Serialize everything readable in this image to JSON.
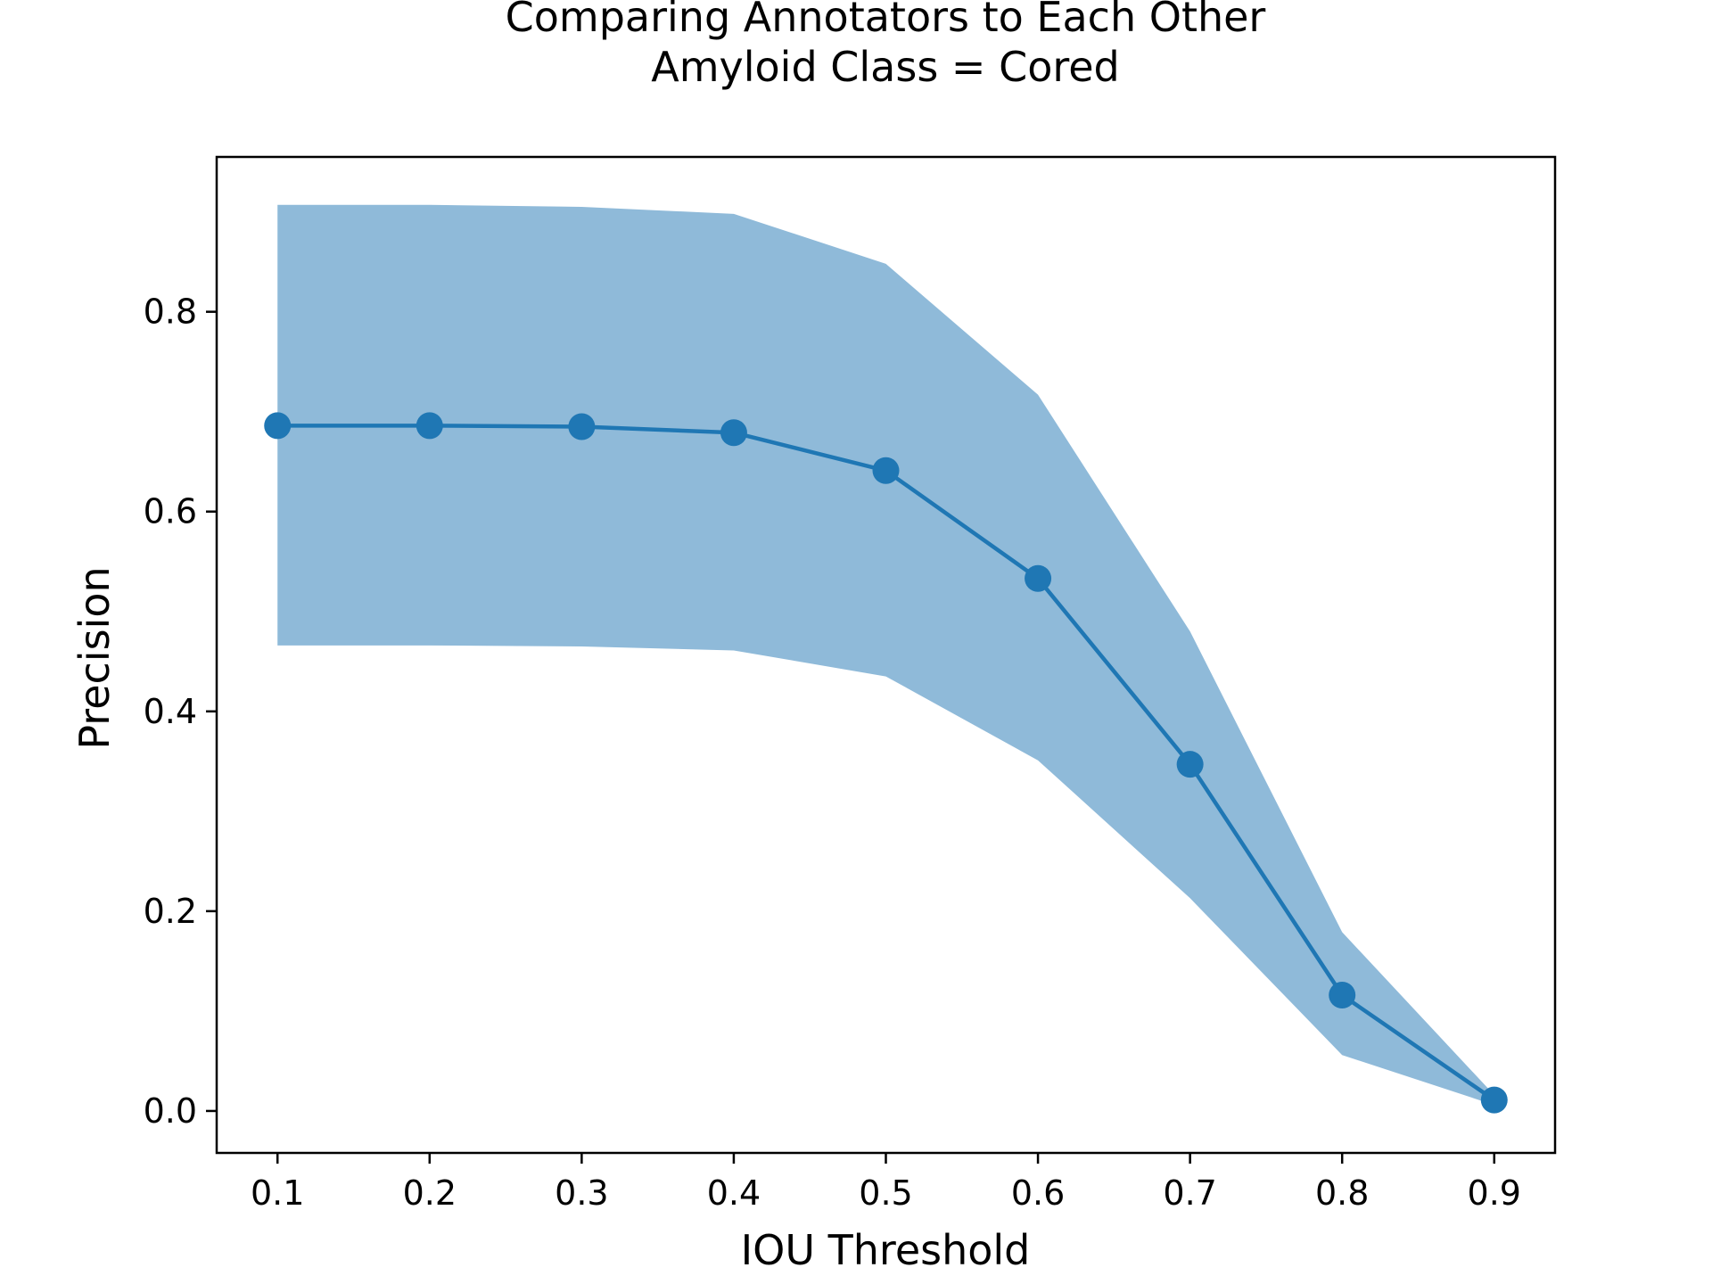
{
  "chart_data": {
    "type": "line",
    "title": "Comparing Annotators to Each Other",
    "subtitle": "Amyloid Class = Cored",
    "xlabel": "IOU Threshold",
    "ylabel": "Precision",
    "xlim": [
      0.06,
      0.94
    ],
    "ylim": [
      -0.042,
      0.955
    ],
    "xticks": [
      0.1,
      0.2,
      0.3,
      0.4,
      0.5,
      0.6,
      0.7,
      0.8,
      0.9
    ],
    "xtick_labels": [
      "0.1",
      "0.2",
      "0.3",
      "0.4",
      "0.5",
      "0.6",
      "0.7",
      "0.8",
      "0.9"
    ],
    "yticks": [
      0.0,
      0.2,
      0.4,
      0.6,
      0.8
    ],
    "ytick_labels": [
      "0.0",
      "0.2",
      "0.4",
      "0.6",
      "0.8"
    ],
    "grid": false,
    "x": [
      0.1,
      0.2,
      0.3,
      0.4,
      0.5,
      0.6,
      0.7,
      0.8,
      0.9
    ],
    "series": [
      {
        "values": [
          0.686,
          0.686,
          0.685,
          0.679,
          0.641,
          0.533,
          0.347,
          0.116,
          0.011
        ],
        "band_upper": [
          0.907,
          0.907,
          0.905,
          0.898,
          0.848,
          0.717,
          0.48,
          0.179,
          0.016
        ],
        "band_lower": [
          0.466,
          0.466,
          0.465,
          0.461,
          0.435,
          0.351,
          0.213,
          0.056,
          0.006
        ],
        "color": "#1f77b4",
        "band_color": "#8fbad9"
      }
    ]
  }
}
